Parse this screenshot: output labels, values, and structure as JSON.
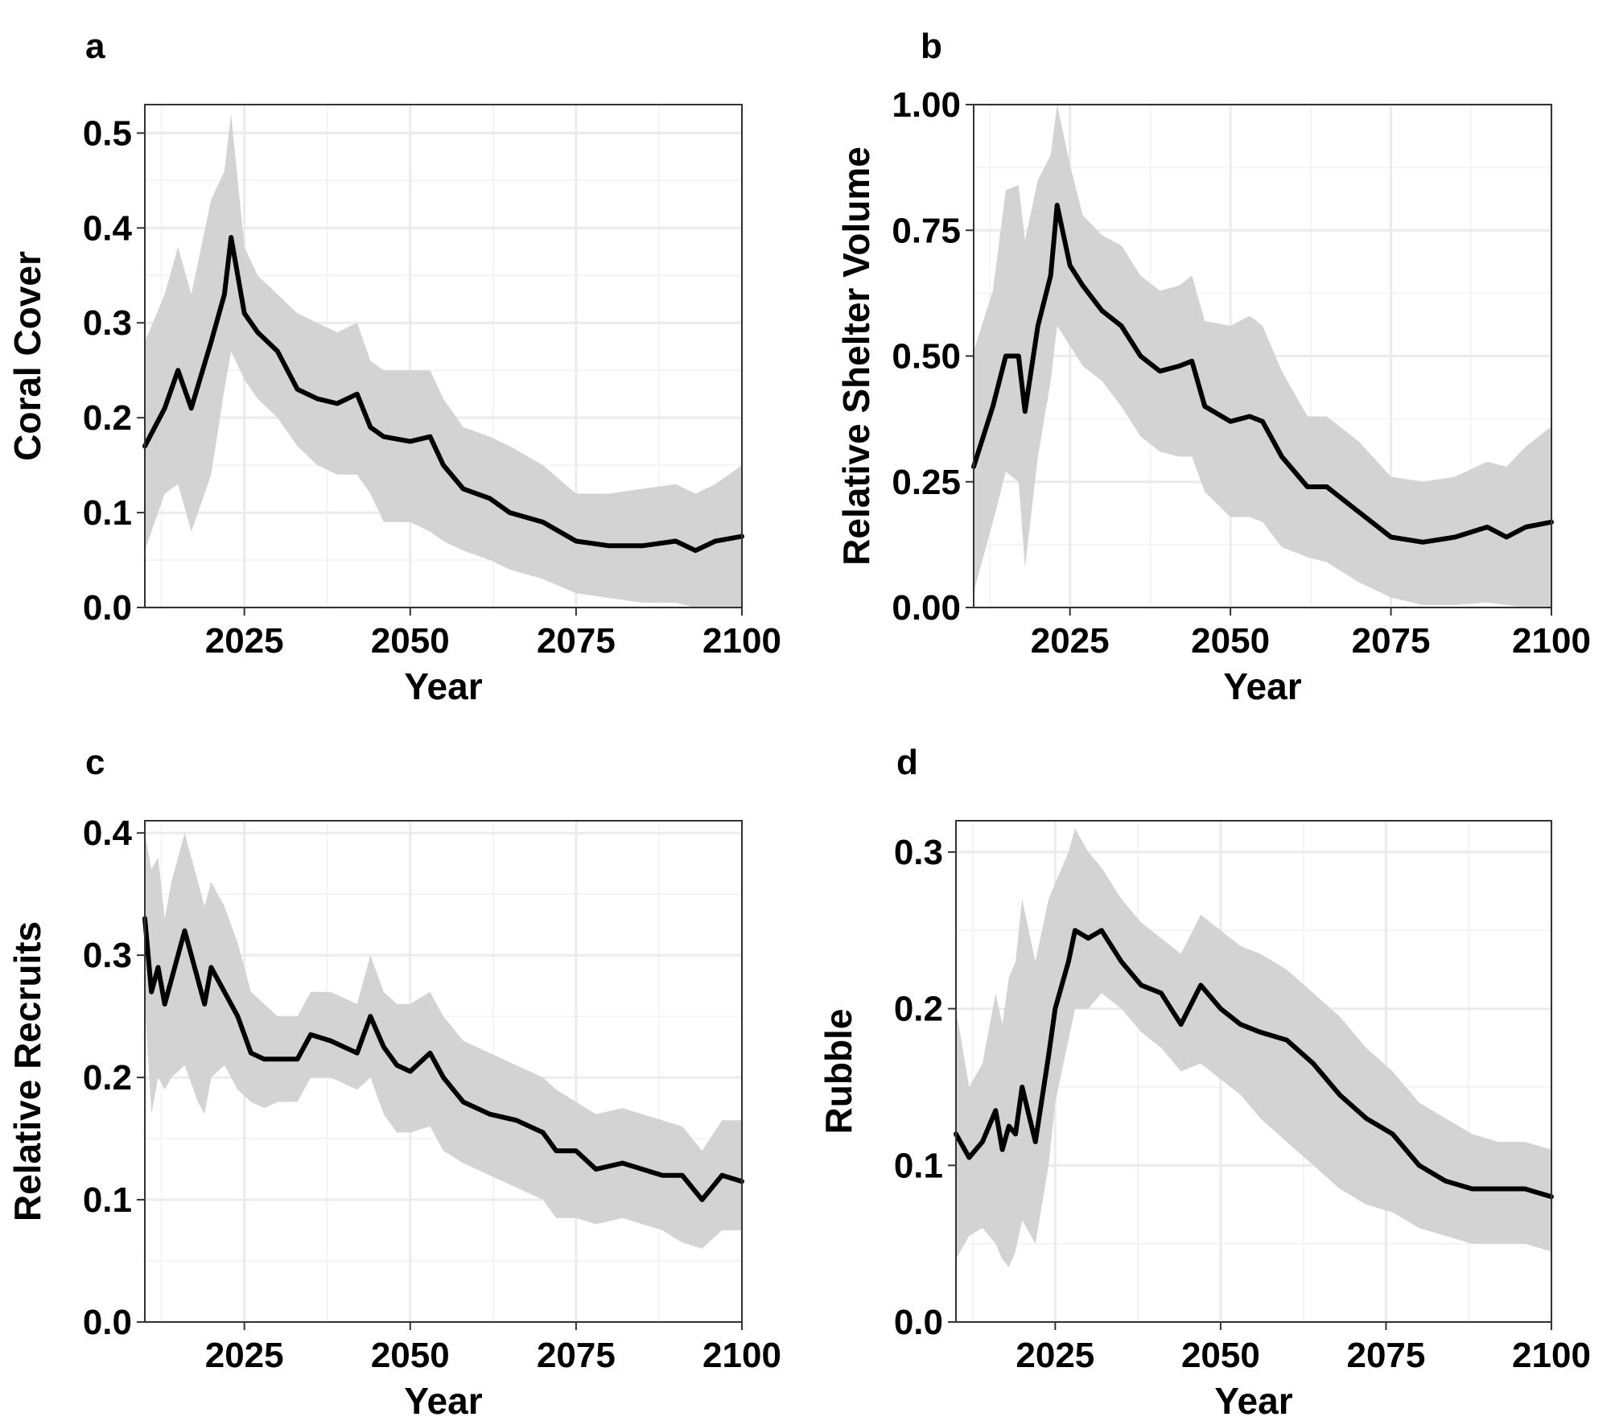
{
  "chart_data": [
    {
      "panel": "a",
      "type": "line",
      "xlabel": "Year",
      "ylabel": "Coral Cover",
      "xlim": [
        2010,
        2100
      ],
      "ylim": [
        0,
        0.53
      ],
      "xticks": [
        2025,
        2050,
        2075,
        2100
      ],
      "yticks": [
        0.0,
        0.1,
        0.2,
        0.3,
        0.4,
        0.5
      ],
      "ytick_labels": [
        "0.0",
        "0.1",
        "0.2",
        "0.3",
        "0.4",
        "0.5"
      ],
      "grid": true,
      "series": [
        {
          "x": [
            2010,
            2013,
            2015,
            2017,
            2020,
            2022,
            2023,
            2025,
            2027,
            2030,
            2033,
            2036,
            2039,
            2042,
            2044,
            2046,
            2050,
            2053,
            2055,
            2058,
            2062,
            2065,
            2070,
            2075,
            2080,
            2085,
            2090,
            2093,
            2096,
            2100
          ],
          "y": [
            0.17,
            0.21,
            0.25,
            0.21,
            0.28,
            0.33,
            0.39,
            0.31,
            0.29,
            0.27,
            0.23,
            0.22,
            0.215,
            0.225,
            0.19,
            0.18,
            0.175,
            0.18,
            0.15,
            0.125,
            0.115,
            0.1,
            0.09,
            0.07,
            0.065,
            0.065,
            0.07,
            0.06,
            0.07,
            0.075
          ],
          "lower": [
            0.06,
            0.12,
            0.13,
            0.08,
            0.14,
            0.23,
            0.27,
            0.24,
            0.22,
            0.2,
            0.17,
            0.15,
            0.14,
            0.14,
            0.12,
            0.09,
            0.09,
            0.08,
            0.07,
            0.06,
            0.05,
            0.04,
            0.03,
            0.015,
            0.01,
            0.005,
            0.005,
            0.0,
            0.0,
            0.0
          ],
          "upper": [
            0.28,
            0.33,
            0.38,
            0.33,
            0.43,
            0.46,
            0.52,
            0.38,
            0.35,
            0.33,
            0.31,
            0.3,
            0.29,
            0.3,
            0.26,
            0.25,
            0.25,
            0.25,
            0.22,
            0.19,
            0.18,
            0.17,
            0.15,
            0.12,
            0.12,
            0.125,
            0.13,
            0.12,
            0.13,
            0.15
          ]
        }
      ]
    },
    {
      "panel": "b",
      "type": "line",
      "xlabel": "Year",
      "ylabel": "Relative Shelter Volume",
      "xlim": [
        2010,
        2100
      ],
      "ylim": [
        0,
        1.0
      ],
      "xticks": [
        2025,
        2050,
        2075,
        2100
      ],
      "yticks": [
        0.0,
        0.25,
        0.5,
        0.75,
        1.0
      ],
      "ytick_labels": [
        "0.00",
        "0.25",
        "0.50",
        "0.75",
        "1.00"
      ],
      "grid": true,
      "series": [
        {
          "x": [
            2010,
            2013,
            2015,
            2017,
            2018,
            2020,
            2022,
            2023,
            2025,
            2027,
            2030,
            2033,
            2036,
            2039,
            2042,
            2044,
            2046,
            2050,
            2053,
            2055,
            2058,
            2062,
            2065,
            2070,
            2075,
            2080,
            2085,
            2090,
            2093,
            2096,
            2100
          ],
          "y": [
            0.28,
            0.4,
            0.5,
            0.5,
            0.39,
            0.56,
            0.66,
            0.8,
            0.68,
            0.64,
            0.59,
            0.56,
            0.5,
            0.47,
            0.48,
            0.49,
            0.4,
            0.37,
            0.38,
            0.37,
            0.3,
            0.24,
            0.24,
            0.19,
            0.14,
            0.13,
            0.14,
            0.16,
            0.14,
            0.16,
            0.17
          ],
          "lower": [
            0.03,
            0.17,
            0.27,
            0.25,
            0.08,
            0.3,
            0.45,
            0.56,
            0.52,
            0.48,
            0.45,
            0.4,
            0.34,
            0.31,
            0.3,
            0.3,
            0.23,
            0.18,
            0.18,
            0.17,
            0.12,
            0.1,
            0.09,
            0.05,
            0.02,
            0.005,
            0.005,
            0.01,
            0.005,
            0.0,
            0.0
          ],
          "upper": [
            0.51,
            0.63,
            0.83,
            0.84,
            0.73,
            0.85,
            0.9,
            1.0,
            0.88,
            0.78,
            0.74,
            0.72,
            0.66,
            0.63,
            0.64,
            0.66,
            0.57,
            0.56,
            0.58,
            0.56,
            0.47,
            0.38,
            0.38,
            0.33,
            0.26,
            0.25,
            0.26,
            0.29,
            0.28,
            0.32,
            0.36
          ]
        }
      ]
    },
    {
      "panel": "c",
      "type": "line",
      "xlabel": "Year",
      "ylabel": "Relative Recruits",
      "xlim": [
        2010,
        2100
      ],
      "ylim": [
        0,
        0.41
      ],
      "xticks": [
        2025,
        2050,
        2075,
        2100
      ],
      "yticks": [
        0.0,
        0.1,
        0.2,
        0.3,
        0.4
      ],
      "ytick_labels": [
        "0.0",
        "0.1",
        "0.2",
        "0.3",
        "0.4"
      ],
      "grid": true,
      "series": [
        {
          "x": [
            2010,
            2011,
            2012,
            2013,
            2014,
            2016,
            2018,
            2019,
            2020,
            2022,
            2024,
            2026,
            2028,
            2030,
            2033,
            2035,
            2038,
            2042,
            2044,
            2046,
            2048,
            2050,
            2053,
            2055,
            2058,
            2062,
            2066,
            2070,
            2072,
            2075,
            2078,
            2082,
            2085,
            2088,
            2091,
            2094,
            2097,
            2100
          ],
          "y": [
            0.33,
            0.27,
            0.29,
            0.26,
            0.28,
            0.32,
            0.28,
            0.26,
            0.29,
            0.27,
            0.25,
            0.22,
            0.215,
            0.215,
            0.215,
            0.235,
            0.23,
            0.22,
            0.25,
            0.225,
            0.21,
            0.205,
            0.22,
            0.2,
            0.18,
            0.17,
            0.165,
            0.155,
            0.14,
            0.14,
            0.125,
            0.13,
            0.125,
            0.12,
            0.12,
            0.1,
            0.12,
            0.115
          ],
          "lower": [
            0.26,
            0.17,
            0.2,
            0.19,
            0.2,
            0.21,
            0.18,
            0.17,
            0.2,
            0.21,
            0.19,
            0.18,
            0.175,
            0.18,
            0.18,
            0.2,
            0.2,
            0.19,
            0.2,
            0.17,
            0.155,
            0.155,
            0.16,
            0.14,
            0.13,
            0.12,
            0.11,
            0.1,
            0.085,
            0.085,
            0.08,
            0.085,
            0.08,
            0.075,
            0.065,
            0.06,
            0.075,
            0.075
          ],
          "upper": [
            0.4,
            0.37,
            0.38,
            0.33,
            0.36,
            0.4,
            0.36,
            0.34,
            0.36,
            0.34,
            0.31,
            0.27,
            0.26,
            0.25,
            0.25,
            0.27,
            0.27,
            0.26,
            0.3,
            0.27,
            0.26,
            0.26,
            0.27,
            0.25,
            0.23,
            0.22,
            0.21,
            0.2,
            0.19,
            0.18,
            0.17,
            0.175,
            0.17,
            0.165,
            0.16,
            0.14,
            0.165,
            0.165
          ]
        }
      ]
    },
    {
      "panel": "d",
      "type": "line",
      "xlabel": "Year",
      "ylabel": "Rubble",
      "xlim": [
        2010,
        2100
      ],
      "ylim": [
        0,
        0.32
      ],
      "xticks": [
        2025,
        2050,
        2075,
        2100
      ],
      "yticks": [
        0.0,
        0.1,
        0.2,
        0.3
      ],
      "ytick_labels": [
        "0.0",
        "0.1",
        "0.2",
        "0.3"
      ],
      "grid": true,
      "series": [
        {
          "x": [
            2010,
            2012,
            2014,
            2016,
            2017,
            2018,
            2019,
            2020,
            2022,
            2024,
            2025,
            2027,
            2028,
            2030,
            2032,
            2035,
            2038,
            2041,
            2044,
            2047,
            2050,
            2053,
            2056,
            2060,
            2064,
            2068,
            2072,
            2076,
            2080,
            2084,
            2088,
            2092,
            2096,
            2100
          ],
          "y": [
            0.12,
            0.105,
            0.115,
            0.135,
            0.11,
            0.125,
            0.12,
            0.15,
            0.115,
            0.17,
            0.2,
            0.23,
            0.25,
            0.245,
            0.25,
            0.23,
            0.215,
            0.21,
            0.19,
            0.215,
            0.2,
            0.19,
            0.185,
            0.18,
            0.165,
            0.145,
            0.13,
            0.12,
            0.1,
            0.09,
            0.085,
            0.085,
            0.085,
            0.08
          ],
          "lower": [
            0.04,
            0.055,
            0.06,
            0.05,
            0.04,
            0.035,
            0.045,
            0.065,
            0.05,
            0.1,
            0.14,
            0.18,
            0.2,
            0.2,
            0.21,
            0.2,
            0.185,
            0.175,
            0.16,
            0.165,
            0.155,
            0.145,
            0.13,
            0.115,
            0.1,
            0.085,
            0.075,
            0.07,
            0.06,
            0.055,
            0.05,
            0.05,
            0.05,
            0.045
          ],
          "upper": [
            0.2,
            0.15,
            0.165,
            0.21,
            0.19,
            0.22,
            0.23,
            0.27,
            0.23,
            0.27,
            0.28,
            0.3,
            0.315,
            0.3,
            0.29,
            0.27,
            0.255,
            0.245,
            0.235,
            0.26,
            0.25,
            0.24,
            0.235,
            0.225,
            0.21,
            0.195,
            0.175,
            0.16,
            0.14,
            0.13,
            0.12,
            0.115,
            0.115,
            0.11
          ]
        }
      ]
    }
  ]
}
